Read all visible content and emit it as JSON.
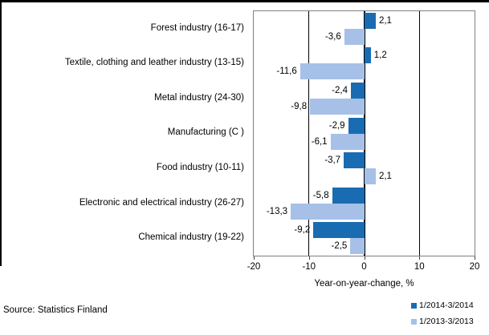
{
  "source_note": "Source: Statistics Finland",
  "chart_data": {
    "type": "bar",
    "orientation": "horizontal",
    "categories": [
      "Forest industry (16-17)",
      "Textile, clothing and leather industry (13-15)",
      "Metal industry (24-30)",
      "Manufacturing (C )",
      "Food industry (10-11)",
      "Electronic and electrical industry (26-27)",
      "Chemical industry (19-22)"
    ],
    "series": [
      {
        "name": "1/2014-3/2014",
        "color": "#1A6CB2",
        "values": [
          2.1,
          1.2,
          -2.4,
          -2.9,
          -3.7,
          -5.8,
          -9.2
        ],
        "labels": [
          "2,1",
          "1,2",
          "-2,4",
          "-2,9",
          "-3,7",
          "-5,8",
          "-9,2"
        ]
      },
      {
        "name": "1/2013-3/2013",
        "color": "#A6C0E8",
        "values": [
          -3.6,
          -11.6,
          -9.8,
          -6.1,
          2.1,
          -13.3,
          -2.5
        ],
        "labels": [
          "-3,6",
          "-11,6",
          "-9,8",
          "-6,1",
          "2,1",
          "-13,3",
          "-2,5"
        ]
      }
    ],
    "xlabel": "Year-on-year-change, %",
    "xlim": [
      -20,
      20
    ],
    "xticks": [
      -20,
      -10,
      0,
      10,
      20
    ],
    "xtick_labels": [
      "-20",
      "-10",
      "0",
      "10",
      "20"
    ],
    "grid": "vertical-inner-lines",
    "legend_position": "bottom-right"
  }
}
